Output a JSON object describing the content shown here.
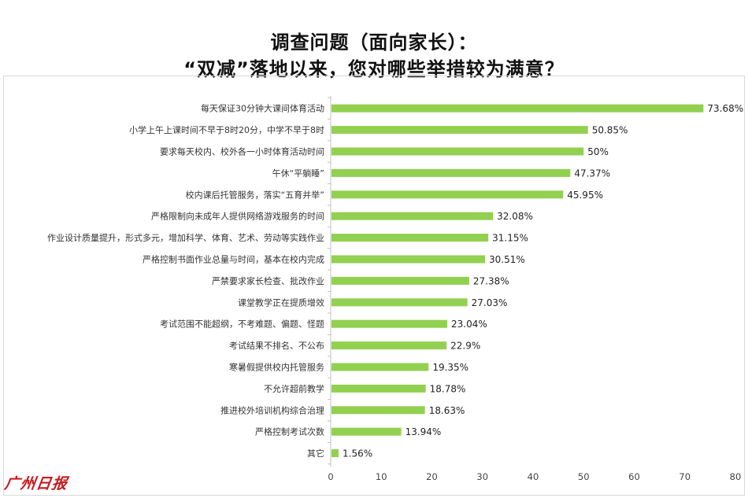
{
  "header": {
    "title_line1": "调查问题（面向家长）：",
    "title_line2": "“双减”落地以来，您对哪些举措较为满意？"
  },
  "brand": {
    "logo_text": "广州日报",
    "logo_color": "#c8171d"
  },
  "chart_data": {
    "type": "bar",
    "orientation": "horizontal",
    "bar_color": "#92d050",
    "categories": [
      "每天保证30分钟大课间体育活动",
      "小学上午上课时间不早于8时20分，中学不早于8时",
      "要求每天校内、校外各一小时体育活动时间",
      "午休“平躺睡”",
      "校内课后托管服务，落实“五育并举”",
      "严格限制向未成年人提供网络游戏服务的时间",
      "作业设计质量提升，形式多元，增加科学、体育、艺术、劳动等实践作业",
      "严格控制书面作业总量与时间，基本在校内完成",
      "严禁要求家长检查、批改作业",
      "课堂教学正在提质增效",
      "考试范围不能超纲，不考难题、偏题、怪题",
      "考试结果不排名、不公布",
      "寒暑假提供校内托管服务",
      "不允许超前教学",
      "推进校外培训机构综合治理",
      "严格控制考试次数",
      "其它"
    ],
    "values": [
      73.68,
      50.85,
      50,
      47.37,
      45.95,
      32.08,
      31.15,
      30.51,
      27.38,
      27.03,
      23.04,
      22.9,
      19.35,
      18.78,
      18.63,
      13.94,
      1.56
    ],
    "value_labels": [
      "73.68%",
      "50.85%",
      "50%",
      "47.37%",
      "45.95%",
      "32.08%",
      "31.15%",
      "30.51%",
      "27.38%",
      "27.03%",
      "23.04%",
      "22.9%",
      "19.35%",
      "18.78%",
      "18.63%",
      "13.94%",
      "1.56%"
    ],
    "x_ticks": [
      0,
      10,
      20,
      30,
      40,
      50,
      60,
      70,
      80
    ],
    "xlim": [
      0,
      80
    ],
    "grid": false,
    "legend": "none"
  }
}
